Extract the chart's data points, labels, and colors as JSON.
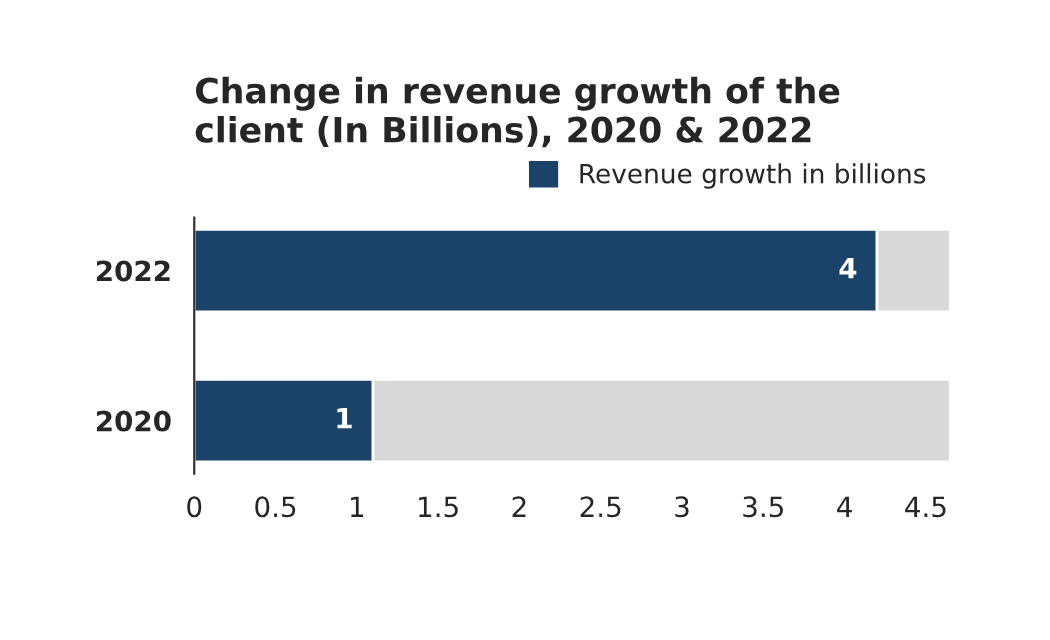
{
  "chart_data": {
    "type": "bar",
    "orientation": "horizontal",
    "title": "Change in revenue growth of the\nclient (In Billions), 2020 & 2022",
    "categories": [
      "2022",
      "2020"
    ],
    "series": [
      {
        "name": "Revenue growth in billions",
        "color": "#1b4268",
        "values": [
          4.2,
          1.1
        ],
        "value_labels": [
          "4",
          "1"
        ]
      },
      {
        "color": "#d9d9d9",
        "values": [
          0.45,
          3.55
        ]
      }
    ],
    "stacked": true,
    "xlim": [
      0,
      4.65
    ],
    "xticks": [
      0,
      0.5,
      1,
      1.5,
      2,
      2.5,
      3,
      3.5,
      4,
      4.5
    ],
    "grid": false,
    "legend": "top right"
  }
}
